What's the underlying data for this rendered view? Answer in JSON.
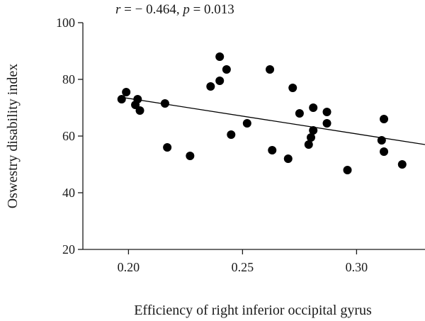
{
  "chart_data": {
    "type": "scatter",
    "title": "",
    "annotation": {
      "r_var": "r",
      "r_text": " = − 0.464, ",
      "p_var": "p",
      "p_text": " = 0.013"
    },
    "xlabel": "Efficiency of right inferior occipital gyrus",
    "ylabel": "Oswestry disability index",
    "xlim": [
      0.18,
      0.33
    ],
    "ylim": [
      20,
      100
    ],
    "xticks": [
      "0.20",
      "0.25",
      "0.30"
    ],
    "xtick_values": [
      0.2,
      0.25,
      0.3
    ],
    "yticks": [
      "20",
      "40",
      "60",
      "80",
      "100"
    ],
    "ytick_values": [
      20,
      40,
      60,
      80,
      100
    ],
    "grid": false,
    "points": [
      {
        "x": 0.197,
        "y": 73
      },
      {
        "x": 0.199,
        "y": 75.5
      },
      {
        "x": 0.203,
        "y": 71
      },
      {
        "x": 0.204,
        "y": 73
      },
      {
        "x": 0.205,
        "y": 69
      },
      {
        "x": 0.216,
        "y": 71.5
      },
      {
        "x": 0.217,
        "y": 56
      },
      {
        "x": 0.227,
        "y": 53
      },
      {
        "x": 0.236,
        "y": 77.5
      },
      {
        "x": 0.24,
        "y": 88
      },
      {
        "x": 0.24,
        "y": 79.5
      },
      {
        "x": 0.243,
        "y": 83.5
      },
      {
        "x": 0.245,
        "y": 60.5
      },
      {
        "x": 0.252,
        "y": 64.5
      },
      {
        "x": 0.262,
        "y": 83.5
      },
      {
        "x": 0.263,
        "y": 55
      },
      {
        "x": 0.27,
        "y": 52
      },
      {
        "x": 0.272,
        "y": 77
      },
      {
        "x": 0.275,
        "y": 68
      },
      {
        "x": 0.279,
        "y": 57
      },
      {
        "x": 0.28,
        "y": 59.5
      },
      {
        "x": 0.281,
        "y": 62
      },
      {
        "x": 0.281,
        "y": 70
      },
      {
        "x": 0.287,
        "y": 64.5
      },
      {
        "x": 0.287,
        "y": 68.5
      },
      {
        "x": 0.296,
        "y": 48
      },
      {
        "x": 0.311,
        "y": 58.5
      },
      {
        "x": 0.312,
        "y": 54.5
      },
      {
        "x": 0.312,
        "y": 66
      },
      {
        "x": 0.32,
        "y": 50
      }
    ],
    "fit_line": {
      "x": [
        0.196,
        0.33
      ],
      "y": [
        73.8,
        57
      ]
    },
    "colors": {
      "points": "#000000",
      "line": "#000000",
      "axis": "#1a1a1a"
    }
  }
}
